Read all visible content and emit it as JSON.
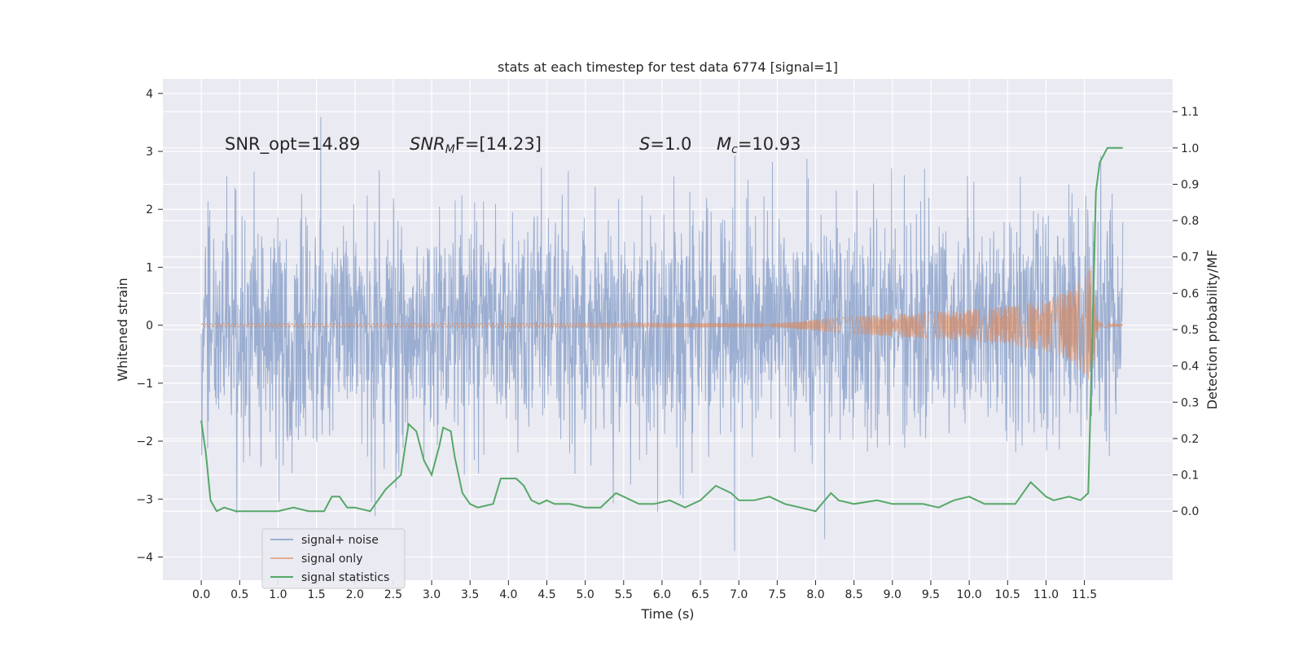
{
  "chart_data": {
    "type": "line",
    "title": "stats at each timestep for test data 6774 [signal=1]",
    "xlabel": "Time (s)",
    "ylabel": "Whitened strain",
    "y2label": "Detection probability/MF",
    "xlim": [
      -0.5,
      12.65
    ],
    "ylim": [
      -4.4,
      4.25
    ],
    "y2lim": [
      -0.19,
      1.19
    ],
    "grid": true,
    "legend_position": "lower-left",
    "x_ticks": [
      "0.0",
      "0.5",
      "1.0",
      "1.5",
      "2.0",
      "2.5",
      "3.0",
      "3.5",
      "4.0",
      "4.5",
      "5.0",
      "5.5",
      "6.0",
      "6.5",
      "7.0",
      "7.5",
      "8.0",
      "8.5",
      "9.0",
      "9.5",
      "10.0",
      "10.5",
      "11.0",
      "11.5"
    ],
    "y_ticks": [
      "4",
      "3",
      "2",
      "1",
      "0",
      "−1",
      "−2",
      "−3",
      "−4"
    ],
    "y2_ticks": [
      "1.1",
      "1.0",
      "0.9",
      "0.8",
      "0.7",
      "0.6",
      "0.5",
      "0.4",
      "0.3",
      "0.2",
      "0.1",
      "0.0"
    ],
    "annotations": {
      "snr_opt": "SNR_opt=14.89",
      "snr_mf_main": "SNR",
      "snr_mf_sub": "M",
      "snr_mf_rest": "F=[14.23]",
      "s_main": "S",
      "s_rest": "=1.0",
      "mc_main": "M",
      "mc_sub": "c",
      "mc_rest": "=10.93"
    },
    "series": [
      {
        "name": "signal+ noise",
        "color": "#4c72b0",
        "description_of_values": "whitened noisy strain from t=0 to t=12, amplitude within about ±4"
      },
      {
        "name": "signal only",
        "color": "#dd8452",
        "envelope": {
          "x": [
            0,
            7.5,
            8.0,
            9.0,
            10.0,
            10.5,
            11.0,
            11.3,
            11.5,
            11.6,
            11.65,
            11.7,
            12.0
          ],
          "amp": [
            0.03,
            0.04,
            0.1,
            0.2,
            0.27,
            0.33,
            0.45,
            0.6,
            0.85,
            1.05,
            0.2,
            0.04,
            0.02
          ]
        }
      },
      {
        "name": "signal statistics",
        "color": "#55a868",
        "x": [
          0,
          0.06,
          0.12,
          0.2,
          0.3,
          0.45,
          0.6,
          0.8,
          1.0,
          1.2,
          1.4,
          1.6,
          1.7,
          1.8,
          1.9,
          2.0,
          2.2,
          2.4,
          2.5,
          2.6,
          2.7,
          2.8,
          2.9,
          3.0,
          3.1,
          3.15,
          3.25,
          3.3,
          3.4,
          3.5,
          3.6,
          3.8,
          3.9,
          4.0,
          4.1,
          4.2,
          4.3,
          4.4,
          4.5,
          4.6,
          4.8,
          5.0,
          5.2,
          5.4,
          5.5,
          5.7,
          5.9,
          6.1,
          6.3,
          6.5,
          6.7,
          6.9,
          7.0,
          7.2,
          7.4,
          7.6,
          7.8,
          8.0,
          8.2,
          8.3,
          8.5,
          8.8,
          9.0,
          9.2,
          9.4,
          9.6,
          9.8,
          10.0,
          10.2,
          10.4,
          10.6,
          10.8,
          10.9,
          11.0,
          11.1,
          11.3,
          11.45,
          11.55,
          11.6,
          11.65,
          11.7,
          11.8,
          11.9,
          12.0
        ],
        "values": [
          0.25,
          0.16,
          0.03,
          0.0,
          0.01,
          0.0,
          0.0,
          0.0,
          0.0,
          0.01,
          0.0,
          0.0,
          0.04,
          0.04,
          0.01,
          0.01,
          0.0,
          0.06,
          0.08,
          0.1,
          0.24,
          0.22,
          0.14,
          0.1,
          0.18,
          0.23,
          0.22,
          0.15,
          0.05,
          0.02,
          0.01,
          0.02,
          0.09,
          0.09,
          0.09,
          0.07,
          0.03,
          0.02,
          0.03,
          0.02,
          0.02,
          0.01,
          0.01,
          0.05,
          0.04,
          0.02,
          0.02,
          0.03,
          0.01,
          0.03,
          0.07,
          0.05,
          0.03,
          0.03,
          0.04,
          0.02,
          0.01,
          0.0,
          0.05,
          0.03,
          0.02,
          0.03,
          0.02,
          0.02,
          0.02,
          0.01,
          0.03,
          0.04,
          0.02,
          0.02,
          0.02,
          0.08,
          0.06,
          0.04,
          0.03,
          0.04,
          0.03,
          0.05,
          0.45,
          0.88,
          0.96,
          1.0,
          1.0,
          1.0
        ]
      }
    ]
  }
}
